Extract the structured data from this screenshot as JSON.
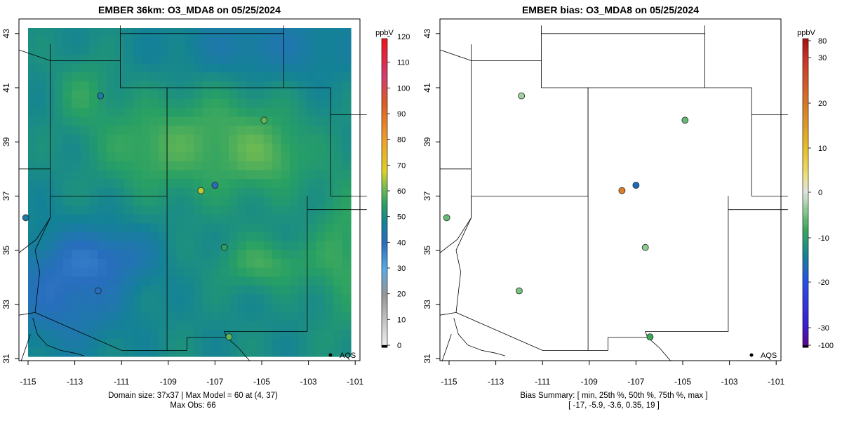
{
  "left": {
    "title": "EMBER 36km: O3_MDA8 on 05/25/2024",
    "caption_line1": "Domain size: 37x37 | Max Model = 60 at (4, 37)",
    "caption_line2": "Max Obs: 66",
    "colorbar": {
      "unit": "ppbV",
      "ticks": [
        0,
        10,
        20,
        30,
        40,
        50,
        60,
        70,
        80,
        90,
        100,
        110,
        120
      ]
    },
    "legend_label": "AQS"
  },
  "right": {
    "title": "EMBER bias: O3_MDA8 on 05/25/2024",
    "caption_line1": "Bias Summary: [ min, 25th %, 50th %, 75th %, max ]",
    "caption_line2": "[ -17,   -5.9,   -3.6,   0.35,   19 ]",
    "colorbar": {
      "unit": "ppbV",
      "ticks": [
        80,
        30,
        20,
        10,
        0,
        -10,
        -20,
        -30,
        -100
      ]
    },
    "legend_label": "AQS"
  },
  "axes": {
    "x_ticks": [
      -115,
      -113,
      -111,
      -109,
      -107,
      -105,
      -103,
      -101
    ],
    "y_ticks": [
      31,
      33,
      35,
      37,
      39,
      41,
      43
    ],
    "xlim": [
      -115.4,
      -100.5
    ],
    "ylim": [
      30.9,
      43.3
    ]
  },
  "map_data": {
    "type": "gridded-field-with-stations",
    "grid_size": "37x37",
    "stations_sample": [
      {
        "lon": -111.9,
        "lat": 40.7,
        "obs": 45,
        "bias": -3
      },
      {
        "lon": -104.9,
        "lat": 39.8,
        "obs": 60,
        "bias": -6
      },
      {
        "lon": -106.6,
        "lat": 35.1,
        "obs": 55,
        "bias": -4
      },
      {
        "lon": -112.0,
        "lat": 33.5,
        "obs": 40,
        "bias": -5
      },
      {
        "lon": -115.1,
        "lat": 36.2,
        "obs": 45,
        "bias": -6
      },
      {
        "lon": -106.4,
        "lat": 31.8,
        "obs": 60,
        "bias": -8
      },
      {
        "lon": -107.6,
        "lat": 37.2,
        "obs": 66,
        "bias": 19
      },
      {
        "lon": -107.0,
        "lat": 37.4,
        "obs": 40,
        "bias": -17
      }
    ]
  }
}
